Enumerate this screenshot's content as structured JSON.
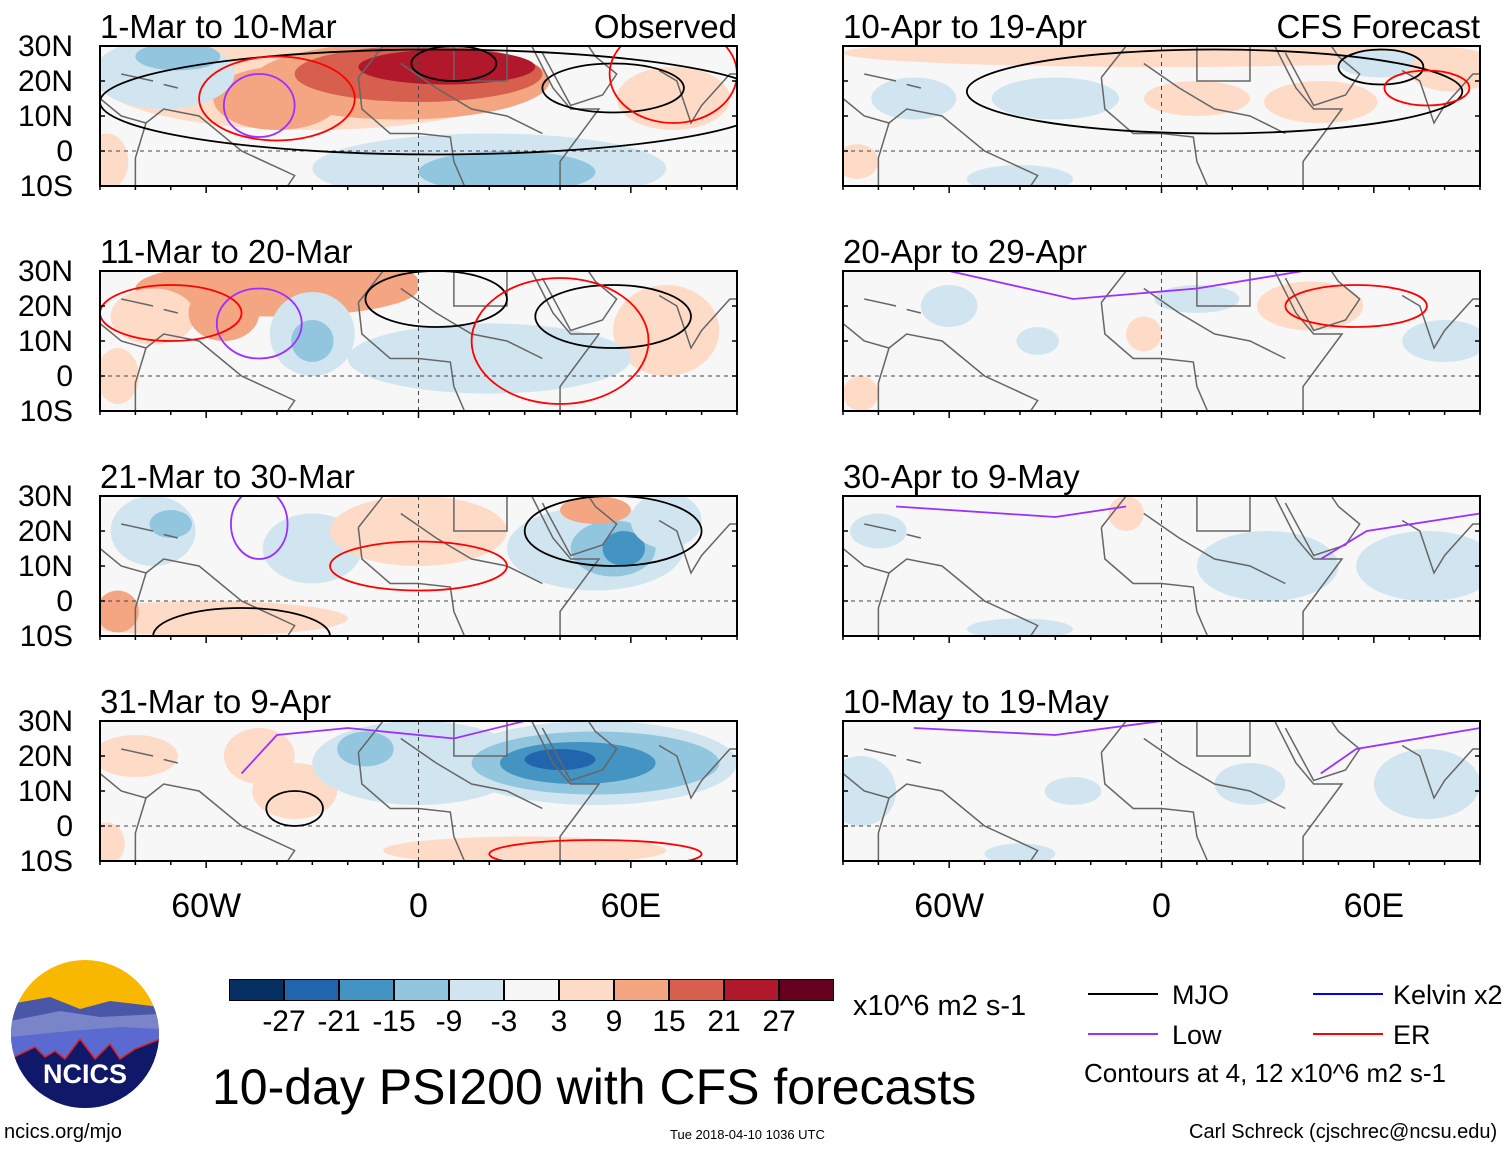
{
  "figure": {
    "title": "10-day PSI200 with CFS forecasts",
    "units": "x10^6 m2 s-1",
    "site": "ncics.org/mjo",
    "timestamp": "Tue 2018-04-10 1036 UTC",
    "credit": "Carl Schreck (cjschrec@ncsu.edu)",
    "logo_text": "NCICS"
  },
  "colorbar": {
    "labels": [
      "-27",
      "-21",
      "-15",
      "-9",
      "-3",
      "3",
      "9",
      "15",
      "21",
      "27"
    ],
    "colors": [
      "#053061",
      "#2166ac",
      "#4393c3",
      "#92c5de",
      "#d1e5f0",
      "#f7f7f7",
      "#fddbc7",
      "#f4a582",
      "#d6604d",
      "#b2182b",
      "#67001f"
    ]
  },
  "legend": {
    "items": [
      {
        "label": "MJO",
        "color": "#000000"
      },
      {
        "label": "Kelvin x2",
        "color": "#0000ff"
      },
      {
        "label": "Low",
        "color": "#9b30ff"
      },
      {
        "label": "ER",
        "color": "#ff0000"
      }
    ],
    "note": "Contours at 4, 12 x10^6 m2 s-1"
  },
  "axes": {
    "lat_labels": [
      "30N",
      "20N",
      "10N",
      "0",
      "10S"
    ],
    "lat_values": [
      30,
      20,
      10,
      0,
      -10
    ],
    "lon_labels": [
      "60W",
      "0",
      "60E"
    ],
    "lon_values": [
      -60,
      0,
      60
    ]
  },
  "chart_data": {
    "type": "heatmap",
    "lon_range": [
      -90,
      90
    ],
    "lat_range": [
      -10,
      30
    ],
    "panels": [
      {
        "title": "1-Mar to 10-Mar",
        "tag": "Observed",
        "anomalies": [
          {
            "lon": -30,
            "lat": 20,
            "rx": 60,
            "ry": 14,
            "v": 4
          },
          {
            "lon": -5,
            "lat": 20,
            "rx": 42,
            "ry": 11,
            "v": 10
          },
          {
            "lon": -40,
            "lat": 15,
            "rx": 18,
            "ry": 9,
            "v": 10
          },
          {
            "lon": 0,
            "lat": 22,
            "rx": 35,
            "ry": 8,
            "v": 16
          },
          {
            "lon": 8,
            "lat": 24,
            "rx": 25,
            "ry": 5,
            "v": 22
          },
          {
            "lon": -72,
            "lat": 22,
            "rx": 20,
            "ry": 10,
            "v": -5
          },
          {
            "lon": -68,
            "lat": 27,
            "rx": 12,
            "ry": 4,
            "v": -10
          },
          {
            "lon": 20,
            "lat": -5,
            "rx": 50,
            "ry": 10,
            "v": -5
          },
          {
            "lon": 25,
            "lat": -6,
            "rx": 25,
            "ry": 6,
            "v": -10
          },
          {
            "lon": 72,
            "lat": 15,
            "rx": 16,
            "ry": 9,
            "v": 4
          },
          {
            "lon": -88,
            "lat": -3,
            "rx": 6,
            "ry": 8,
            "v": 4
          }
        ],
        "contours": [
          {
            "type": "MJO",
            "lon": 55,
            "lat": 18,
            "rx": 20,
            "ry": 7
          },
          {
            "type": "MJO",
            "lon": 10,
            "lat": 25,
            "rx": 12,
            "ry": 5
          },
          {
            "type": "MJO",
            "lon": 5,
            "lat": 14,
            "rx": 95,
            "ry": 15
          },
          {
            "type": "ER",
            "lon": 72,
            "lat": 22,
            "rx": 18,
            "ry": 14
          },
          {
            "type": "Low",
            "lon": -45,
            "lat": 13,
            "rx": 10,
            "ry": 9
          },
          {
            "type": "ER",
            "lon": -40,
            "lat": 15,
            "rx": 22,
            "ry": 12
          }
        ]
      },
      {
        "title": "10-Apr to 19-Apr",
        "tag": "CFS Forecast",
        "anomalies": [
          {
            "lon": 0,
            "lat": 28,
            "rx": 90,
            "ry": 4,
            "v": 4
          },
          {
            "lon": -70,
            "lat": 15,
            "rx": 12,
            "ry": 6,
            "v": -5
          },
          {
            "lon": -30,
            "lat": 15,
            "rx": 18,
            "ry": 6,
            "v": -5
          },
          {
            "lon": 10,
            "lat": 15,
            "rx": 15,
            "ry": 5,
            "v": 4
          },
          {
            "lon": 45,
            "lat": 14,
            "rx": 16,
            "ry": 6,
            "v": 4
          },
          {
            "lon": 62,
            "lat": 25,
            "rx": 12,
            "ry": 4,
            "v": -8
          },
          {
            "lon": 82,
            "lat": 23,
            "rx": 12,
            "ry": 6,
            "v": 4
          },
          {
            "lon": -86,
            "lat": -3,
            "rx": 6,
            "ry": 5,
            "v": 4
          },
          {
            "lon": -40,
            "lat": -8,
            "rx": 15,
            "ry": 4,
            "v": -5
          }
        ],
        "contours": [
          {
            "type": "MJO",
            "lon": 15,
            "lat": 17,
            "rx": 70,
            "ry": 12
          },
          {
            "type": "MJO",
            "lon": 62,
            "lat": 24,
            "rx": 12,
            "ry": 5
          },
          {
            "type": "ER",
            "lon": 75,
            "lat": 18,
            "rx": 12,
            "ry": 5
          }
        ]
      },
      {
        "title": "11-Mar to 20-Mar",
        "tag": "",
        "anomalies": [
          {
            "lon": -40,
            "lat": 25,
            "rx": 40,
            "ry": 8,
            "v": 10
          },
          {
            "lon": -15,
            "lat": 27,
            "rx": 15,
            "ry": 5,
            "v": 12
          },
          {
            "lon": -75,
            "lat": 17,
            "rx": 12,
            "ry": 8,
            "v": 4
          },
          {
            "lon": -55,
            "lat": 18,
            "rx": 10,
            "ry": 8,
            "v": 10
          },
          {
            "lon": -30,
            "lat": 12,
            "rx": 12,
            "ry": 12,
            "v": -5
          },
          {
            "lon": -30,
            "lat": 10,
            "rx": 6,
            "ry": 6,
            "v": -12
          },
          {
            "lon": 70,
            "lat": 13,
            "rx": 15,
            "ry": 13,
            "v": 4
          },
          {
            "lon": 20,
            "lat": 5,
            "rx": 40,
            "ry": 10,
            "v": -5
          },
          {
            "lon": -85,
            "lat": 0,
            "rx": 6,
            "ry": 8,
            "v": 4
          }
        ],
        "contours": [
          {
            "type": "MJO",
            "lon": 55,
            "lat": 17,
            "rx": 22,
            "ry": 9
          },
          {
            "type": "MJO",
            "lon": 5,
            "lat": 22,
            "rx": 20,
            "ry": 8
          },
          {
            "type": "ER",
            "lon": 40,
            "lat": 10,
            "rx": 25,
            "ry": 18
          },
          {
            "type": "Low",
            "lon": -45,
            "lat": 15,
            "rx": 12,
            "ry": 10
          },
          {
            "type": "ER",
            "lon": -70,
            "lat": 18,
            "rx": 20,
            "ry": 8
          }
        ]
      },
      {
        "title": "20-Apr to 29-Apr",
        "tag": "",
        "anomalies": [
          {
            "lon": 42,
            "lat": 20,
            "rx": 15,
            "ry": 7,
            "v": 4
          },
          {
            "lon": -5,
            "lat": 12,
            "rx": 5,
            "ry": 5,
            "v": 4
          },
          {
            "lon": -60,
            "lat": 20,
            "rx": 8,
            "ry": 6,
            "v": -5
          },
          {
            "lon": -35,
            "lat": 10,
            "rx": 6,
            "ry": 4,
            "v": -5
          },
          {
            "lon": 10,
            "lat": 22,
            "rx": 12,
            "ry": 4,
            "v": -5
          },
          {
            "lon": 80,
            "lat": 10,
            "rx": 12,
            "ry": 6,
            "v": -5
          },
          {
            "lon": -85,
            "lat": -5,
            "rx": 5,
            "ry": 5,
            "v": 4
          }
        ],
        "contours": [
          {
            "type": "ER",
            "lon": 55,
            "lat": 20,
            "rx": 20,
            "ry": 6
          },
          {
            "type": "Low",
            "points": [
              [
                -60,
                30
              ],
              [
                -25,
                22
              ],
              [
                10,
                25
              ],
              [
                40,
                30
              ]
            ]
          }
        ]
      },
      {
        "title": "21-Mar to 30-Mar",
        "tag": "",
        "anomalies": [
          {
            "lon": -75,
            "lat": 20,
            "rx": 12,
            "ry": 10,
            "v": -8
          },
          {
            "lon": -70,
            "lat": 22,
            "rx": 6,
            "ry": 4,
            "v": -12
          },
          {
            "lon": -30,
            "lat": 15,
            "rx": 14,
            "ry": 10,
            "v": -8
          },
          {
            "lon": 0,
            "lat": 20,
            "rx": 25,
            "ry": 10,
            "v": 4
          },
          {
            "lon": 50,
            "lat": 15,
            "rx": 25,
            "ry": 12,
            "v": -5
          },
          {
            "lon": 55,
            "lat": 15,
            "rx": 12,
            "ry": 8,
            "v": -12
          },
          {
            "lon": 58,
            "lat": 15,
            "rx": 6,
            "ry": 5,
            "v": -20
          },
          {
            "lon": 50,
            "lat": 26,
            "rx": 10,
            "ry": 4,
            "v": 12
          },
          {
            "lon": -60,
            "lat": -5,
            "rx": 40,
            "ry": 5,
            "v": 4
          },
          {
            "lon": -85,
            "lat": -3,
            "rx": 6,
            "ry": 6,
            "v": 12
          },
          {
            "lon": 70,
            "lat": 23,
            "rx": 10,
            "ry": 8,
            "v": -5
          }
        ],
        "contours": [
          {
            "type": "MJO",
            "lon": 55,
            "lat": 20,
            "rx": 25,
            "ry": 10
          },
          {
            "type": "ER",
            "lon": 0,
            "lat": 10,
            "rx": 25,
            "ry": 7
          },
          {
            "type": "MJO",
            "lon": -50,
            "lat": -10,
            "rx": 25,
            "ry": 8
          },
          {
            "type": "Low",
            "lon": -45,
            "lat": 22,
            "rx": 8,
            "ry": 10
          }
        ]
      },
      {
        "title": "30-Apr to 9-May",
        "tag": "",
        "anomalies": [
          {
            "lon": -10,
            "lat": 25,
            "rx": 5,
            "ry": 5,
            "v": 4
          },
          {
            "lon": 30,
            "lat": 10,
            "rx": 20,
            "ry": 10,
            "v": -5
          },
          {
            "lon": 75,
            "lat": 10,
            "rx": 20,
            "ry": 10,
            "v": -5
          },
          {
            "lon": -80,
            "lat": 20,
            "rx": 8,
            "ry": 5,
            "v": -5
          },
          {
            "lon": -40,
            "lat": -8,
            "rx": 15,
            "ry": 3,
            "v": -5
          }
        ],
        "contours": [
          {
            "type": "Low",
            "points": [
              [
                -75,
                27
              ],
              [
                -30,
                24
              ],
              [
                -10,
                27
              ]
            ]
          },
          {
            "type": "Low",
            "points": [
              [
                45,
                12
              ],
              [
                58,
                20
              ],
              [
                90,
                25
              ]
            ]
          }
        ]
      },
      {
        "title": "31-Mar to 9-Apr",
        "tag": "",
        "anomalies": [
          {
            "lon": -80,
            "lat": 20,
            "rx": 12,
            "ry": 6,
            "v": 4
          },
          {
            "lon": -45,
            "lat": 20,
            "rx": 10,
            "ry": 8,
            "v": 4
          },
          {
            "lon": -35,
            "lat": 10,
            "rx": 12,
            "ry": 8,
            "v": 4
          },
          {
            "lon": 0,
            "lat": 18,
            "rx": 30,
            "ry": 12,
            "v": -5
          },
          {
            "lon": -15,
            "lat": 22,
            "rx": 8,
            "ry": 5,
            "v": -10
          },
          {
            "lon": 50,
            "lat": 18,
            "rx": 40,
            "ry": 12,
            "v": -5
          },
          {
            "lon": 50,
            "lat": 18,
            "rx": 35,
            "ry": 9,
            "v": -10
          },
          {
            "lon": 45,
            "lat": 18,
            "rx": 22,
            "ry": 6,
            "v": -16
          },
          {
            "lon": 40,
            "lat": 19,
            "rx": 10,
            "ry": 3,
            "v": -22
          },
          {
            "lon": 30,
            "lat": -7,
            "rx": 40,
            "ry": 4,
            "v": 4
          },
          {
            "lon": -88,
            "lat": -5,
            "rx": 5,
            "ry": 6,
            "v": 4
          }
        ],
        "contours": [
          {
            "type": "MJO",
            "lon": -35,
            "lat": 5,
            "rx": 8,
            "ry": 5
          },
          {
            "type": "ER",
            "lon": 50,
            "lat": -8,
            "rx": 30,
            "ry": 4
          },
          {
            "type": "Low",
            "points": [
              [
                -50,
                15
              ],
              [
                -40,
                26
              ],
              [
                -20,
                28
              ],
              [
                10,
                25
              ],
              [
                30,
                30
              ]
            ]
          }
        ]
      },
      {
        "title": "10-May to 19-May",
        "tag": "",
        "anomalies": [
          {
            "lon": -85,
            "lat": 10,
            "rx": 10,
            "ry": 10,
            "v": -5
          },
          {
            "lon": -25,
            "lat": 10,
            "rx": 8,
            "ry": 4,
            "v": -5
          },
          {
            "lon": 25,
            "lat": 12,
            "rx": 10,
            "ry": 6,
            "v": -5
          },
          {
            "lon": 75,
            "lat": 12,
            "rx": 15,
            "ry": 10,
            "v": -5
          },
          {
            "lon": -40,
            "lat": -8,
            "rx": 10,
            "ry": 3,
            "v": -5
          }
        ],
        "contours": [
          {
            "type": "Low",
            "points": [
              [
                -70,
                28
              ],
              [
                -30,
                26
              ],
              [
                0,
                30
              ]
            ]
          },
          {
            "type": "Low",
            "points": [
              [
                45,
                15
              ],
              [
                55,
                22
              ],
              [
                90,
                28
              ]
            ]
          }
        ]
      }
    ]
  }
}
